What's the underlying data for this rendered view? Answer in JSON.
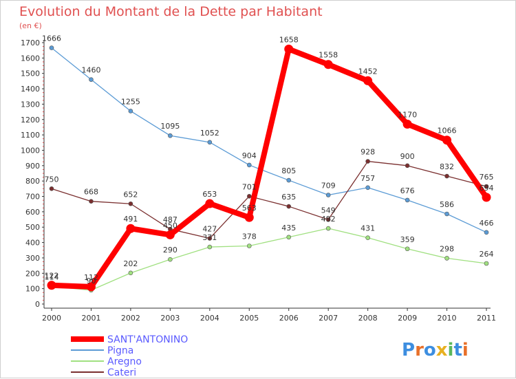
{
  "chart_data": {
    "type": "line",
    "title": "Evolution du Montant de la Dette par Habitant",
    "subtitle": "(en €)",
    "x": [
      "2000",
      "2001",
      "2002",
      "2003",
      "2004",
      "2005",
      "2006",
      "2007",
      "2008",
      "2009",
      "2010",
      "2011"
    ],
    "ylim": [
      0,
      1700
    ],
    "yticks": [
      0,
      100,
      200,
      300,
      400,
      500,
      600,
      700,
      800,
      900,
      1000,
      1100,
      1200,
      1300,
      1400,
      1500,
      1600,
      1700
    ],
    "grid": false,
    "legend_position": "bottom-left",
    "series": [
      {
        "name": "SANT'ANTONINO",
        "color": "#ff0000",
        "values": [
          122,
          112,
          491,
          450,
          653,
          563,
          1658,
          1558,
          1452,
          1170,
          1066,
          694
        ]
      },
      {
        "name": "Pigna",
        "color": "#5b9bd5",
        "values": [
          1666,
          1460,
          1255,
          1095,
          1052,
          904,
          805,
          709,
          757,
          676,
          586,
          466
        ]
      },
      {
        "name": "Aregno",
        "color": "#a0e080",
        "values": [
          114,
          90,
          202,
          290,
          371,
          378,
          435,
          492,
          431,
          359,
          298,
          264
        ]
      },
      {
        "name": "Cateri",
        "color": "#7a2f2f",
        "values": [
          750,
          668,
          652,
          487,
          427,
          701,
          635,
          549,
          928,
          900,
          832,
          765
        ]
      }
    ]
  },
  "logo": {
    "text": "Proxiti"
  }
}
